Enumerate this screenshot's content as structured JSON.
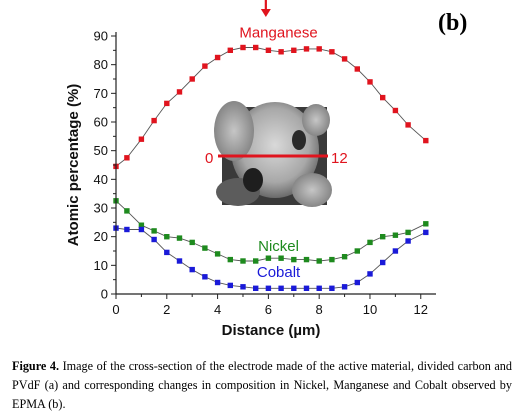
{
  "panel_label": "(b)",
  "caption": {
    "label": "Figure 4.",
    "text": "Image of the cross-section of the electrode made of the active material, divided carbon and PVdF (a) and corresponding changes in composition in Nickel, Manganese and Cobalt observed by EPMA (b)."
  },
  "inset": {
    "start_label": "0",
    "end_label": "12",
    "line_color": "#e0141e"
  },
  "chart_data": {
    "type": "line",
    "xlabel": "Distance (µm)",
    "ylabel": "Atomic percentage (%)",
    "xlim": [
      0,
      12.6
    ],
    "ylim": [
      0,
      90
    ],
    "xticks": [
      0,
      2,
      4,
      6,
      8,
      10,
      12
    ],
    "yticks": [
      0,
      10,
      20,
      30,
      40,
      50,
      60,
      70,
      80,
      90
    ],
    "grid": false,
    "legend": "inline labels",
    "annotation": "arrow marker above chart at x ≈ 5.9",
    "arrow_x": 5.9,
    "series": [
      {
        "name": "Manganese",
        "color": "#e0141e",
        "x": [
          0,
          0.43,
          1.0,
          1.5,
          2.0,
          2.5,
          3.0,
          3.5,
          4.0,
          4.5,
          5.0,
          5.5,
          6.0,
          6.5,
          7.0,
          7.5,
          8.0,
          8.5,
          9.0,
          9.5,
          10.0,
          10.5,
          11.0,
          11.5,
          12.2
        ],
        "y": [
          44.5,
          47.5,
          54,
          60.5,
          66.5,
          70.5,
          75,
          79.5,
          82.5,
          85,
          86,
          86,
          85,
          84.5,
          85,
          85.5,
          85.5,
          84.5,
          82,
          78.5,
          74,
          68.5,
          64,
          59,
          53.5
        ]
      },
      {
        "name": "Nickel",
        "color": "#1e8a1e",
        "x": [
          0,
          0.43,
          1.0,
          1.5,
          2.0,
          2.5,
          3.0,
          3.5,
          4.0,
          4.5,
          5.0,
          5.5,
          6.0,
          6.5,
          7.0,
          7.5,
          8.0,
          8.5,
          9.0,
          9.5,
          10.0,
          10.5,
          11.0,
          11.5,
          12.2
        ],
        "y": [
          32.5,
          29,
          24,
          22,
          20,
          19.5,
          18,
          16,
          14,
          12,
          11.5,
          11.5,
          12.5,
          12.5,
          12,
          12,
          11.5,
          12,
          13,
          15,
          18,
          20,
          20.5,
          21.5,
          24.5
        ]
      },
      {
        "name": "Cobalt",
        "color": "#1a1ad8",
        "x": [
          0,
          0.43,
          1.0,
          1.5,
          2.0,
          2.5,
          3.0,
          3.5,
          4.0,
          4.5,
          5.0,
          5.5,
          6.0,
          6.5,
          7.0,
          7.5,
          8.0,
          8.5,
          9.0,
          9.5,
          10.0,
          10.5,
          11.0,
          11.5,
          12.2
        ],
        "y": [
          23,
          22.5,
          22.5,
          19,
          14.5,
          11.5,
          8.5,
          6,
          4,
          3,
          2.5,
          2,
          2,
          2,
          2,
          2,
          2,
          2,
          2.5,
          4,
          7,
          11,
          15,
          18.5,
          21.5
        ]
      }
    ]
  }
}
